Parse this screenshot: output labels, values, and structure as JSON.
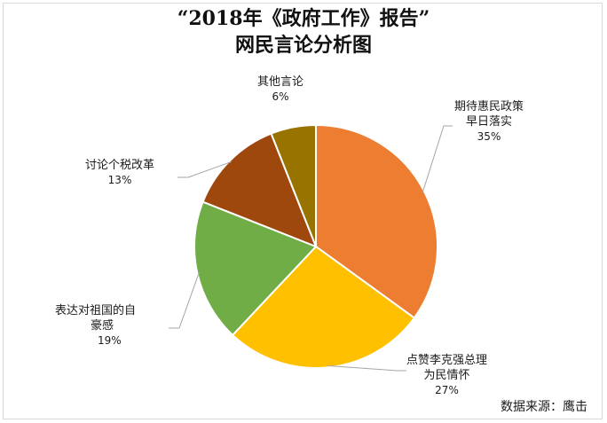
{
  "chart_data": {
    "type": "pie",
    "title": "“2018年《政府工作》报告”",
    "subtitle": "网民言论分析图",
    "slices": [
      {
        "label": "期待惠民政策早日落实",
        "label_lines": [
          "期待惠民政策",
          "早日落实"
        ],
        "value": 35,
        "value_label": "35%",
        "color": "#ED7D31"
      },
      {
        "label": "点赞李克强总理为民情怀",
        "label_lines": [
          "点赞李克强总理",
          "为民情怀"
        ],
        "value": 27,
        "value_label": "27%",
        "color": "#FFC000"
      },
      {
        "label": "表达对祖国的自豪感",
        "label_lines": [
          "表达对祖国的自",
          "豪感"
        ],
        "value": 19,
        "value_label": "19%",
        "color": "#70AD47"
      },
      {
        "label": "讨论个税改革",
        "label_lines": [
          "讨论个税改革"
        ],
        "value": 13,
        "value_label": "13%",
        "color": "#9E480E"
      },
      {
        "label": "其他言论",
        "label_lines": [
          "其他言论"
        ],
        "value": 6,
        "value_label": "6%",
        "color": "#997300"
      }
    ],
    "legend": "none",
    "source": "数据来源：鹰击"
  }
}
